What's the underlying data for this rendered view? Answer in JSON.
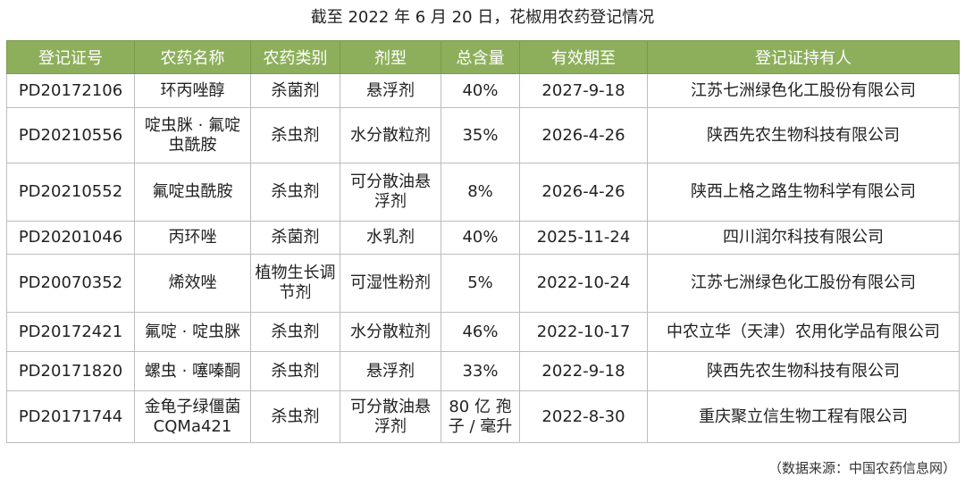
{
  "title": "截至 2022 年 6 月 20 日，花椒用农药登记情况",
  "table": {
    "headers": [
      "登记证号",
      "农药名称",
      "农药类别",
      "剂型",
      "总含量",
      "有效期至",
      "登记证持有人"
    ],
    "rows": [
      [
        "PD20172106",
        "环丙唑醇",
        "杀菌剂",
        "悬浮剂",
        "40%",
        "2027-9-18",
        "江苏七洲绿色化工股份有限公司"
      ],
      [
        "PD20210556",
        "啶虫脒 · 氟啶虫酰胺",
        "杀虫剂",
        "水分散粒剂",
        "35%",
        "2026-4-26",
        "陕西先农生物科技有限公司"
      ],
      [
        "PD20210552",
        "氟啶虫酰胺",
        "杀虫剂",
        "可分散油悬浮剂",
        "8%",
        "2026-4-26",
        "陕西上格之路生物科学有限公司"
      ],
      [
        "PD20201046",
        "丙环唑",
        "杀菌剂",
        "水乳剂",
        "40%",
        "2025-11-24",
        "四川润尔科技有限公司"
      ],
      [
        "PD20070352",
        "烯效唑",
        "植物生长调节剂",
        "可湿性粉剂",
        "5%",
        "2022-10-24",
        "江苏七洲绿色化工股份有限公司"
      ],
      [
        "PD20172421",
        "氟啶 · 啶虫脒",
        "杀虫剂",
        "水分散粒剂",
        "46%",
        "2022-10-17",
        "中农立华（天津）农用化学品有限公司"
      ],
      [
        "PD20171820",
        "螺虫 · 噻嗪酮",
        "杀虫剂",
        "悬浮剂",
        "33%",
        "2022-9-18",
        "陕西先农生物科技有限公司"
      ],
      [
        "PD20171744",
        "金龟子绿僵菌 CQMa421",
        "杀虫剂",
        "可分散油悬浮剂",
        "80 亿 孢子 / 毫升",
        "2022-8-30",
        "重庆聚立信生物工程有限公司"
      ]
    ]
  },
  "source_note": "（数据来源：中国农药信息网）",
  "colors": {
    "header_bg": "#8daf5b",
    "header_text": "#ffffff",
    "border": "#bdbdbd"
  }
}
